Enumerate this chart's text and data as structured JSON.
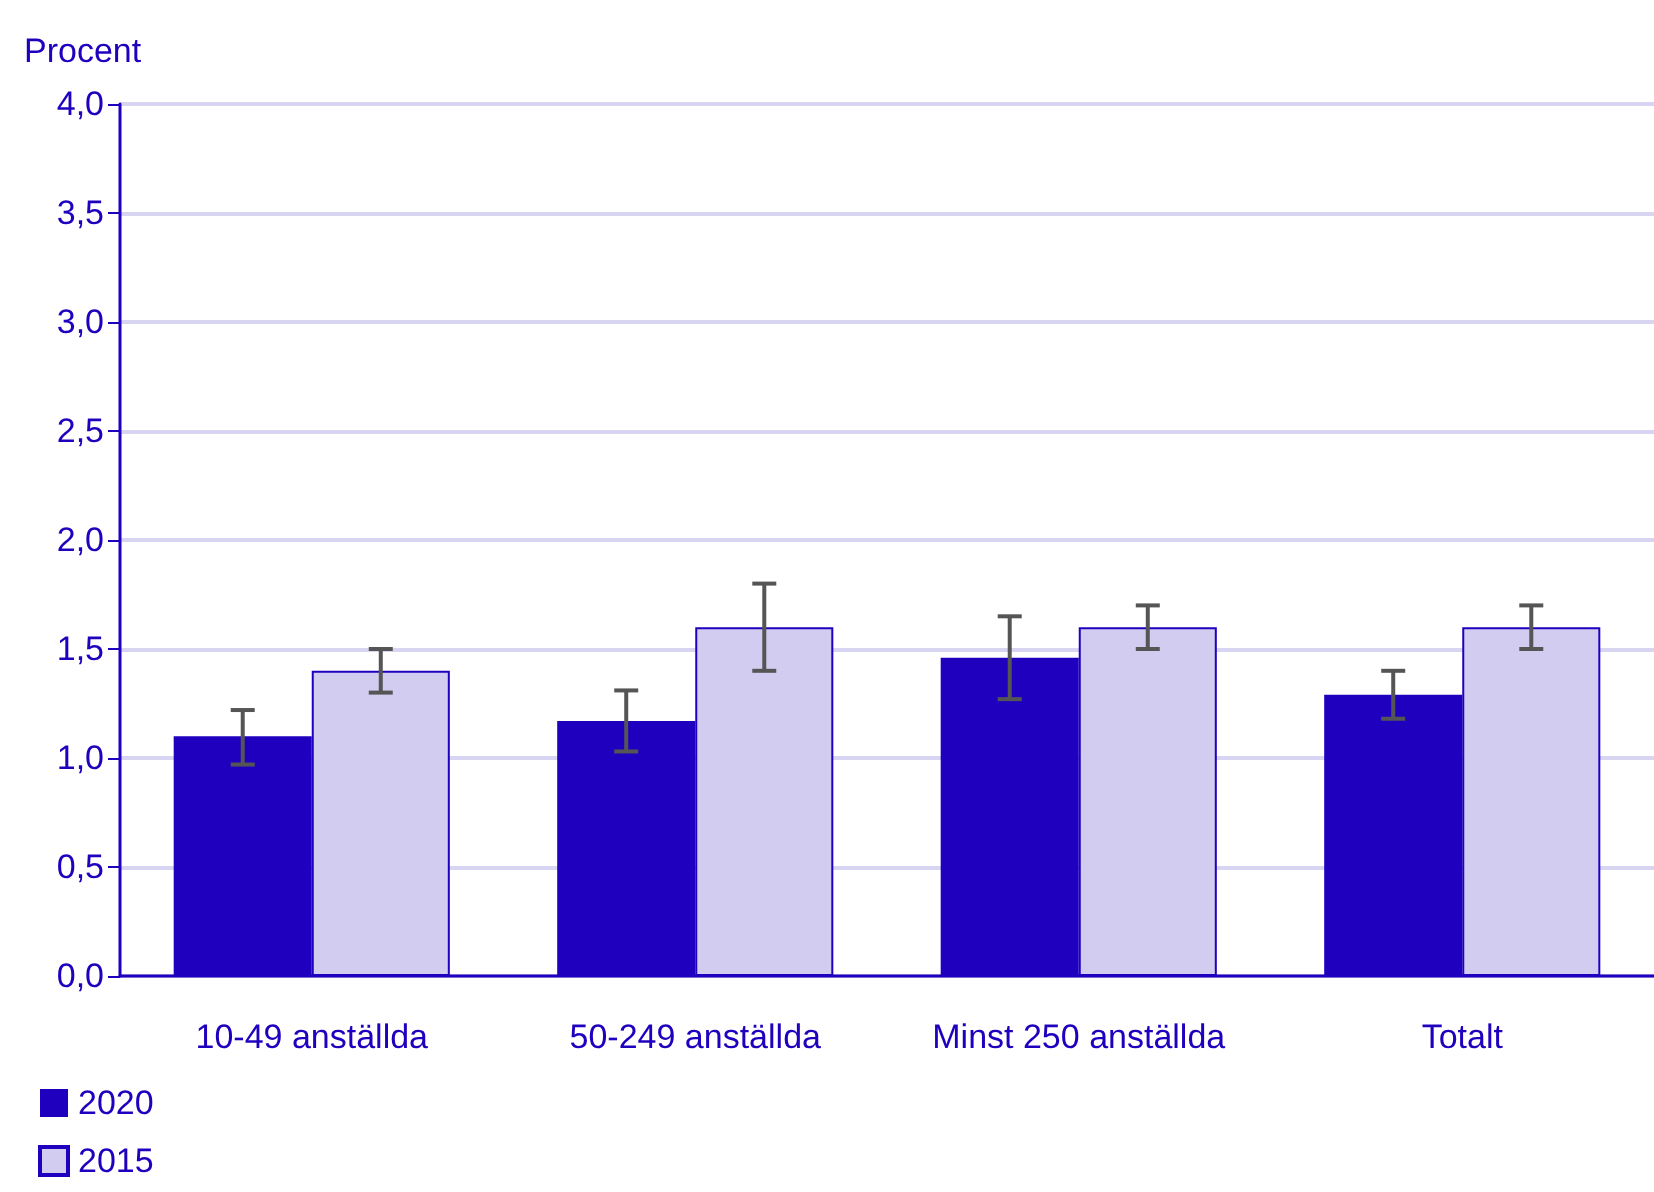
{
  "chart_data": {
    "type": "bar",
    "ylabel": "Procent",
    "categories": [
      "10-49 anställda",
      "50-249 anställda",
      "Minst 250 anställda",
      "Totalt"
    ],
    "series": [
      {
        "name": "2020",
        "color": "#1e00be",
        "values": [
          1.1,
          1.17,
          1.46,
          1.29
        ],
        "errors": [
          [
            0.97,
            1.22
          ],
          [
            1.03,
            1.31
          ],
          [
            1.27,
            1.65
          ],
          [
            1.18,
            1.4
          ]
        ]
      },
      {
        "name": "2015",
        "color": "#d2cdf0",
        "values": [
          1.4,
          1.6,
          1.6,
          1.6
        ],
        "errors": [
          [
            1.3,
            1.5
          ],
          [
            1.4,
            1.8
          ],
          [
            1.5,
            1.7
          ],
          [
            1.5,
            1.7
          ]
        ]
      }
    ],
    "ylim": [
      0,
      4
    ],
    "yticks": [
      {
        "value": 0,
        "label": "0,0"
      },
      {
        "value": 0.5,
        "label": "0,5"
      },
      {
        "value": 1,
        "label": "1,0"
      },
      {
        "value": 1.5,
        "label": "1,5"
      },
      {
        "value": 2,
        "label": "2,0"
      },
      {
        "value": 2.5,
        "label": "2,5"
      },
      {
        "value": 3,
        "label": "3,0"
      },
      {
        "value": 3.5,
        "label": "3,5"
      },
      {
        "value": 4,
        "label": "4,0"
      }
    ],
    "grid": "y",
    "legend": "bottom left"
  }
}
